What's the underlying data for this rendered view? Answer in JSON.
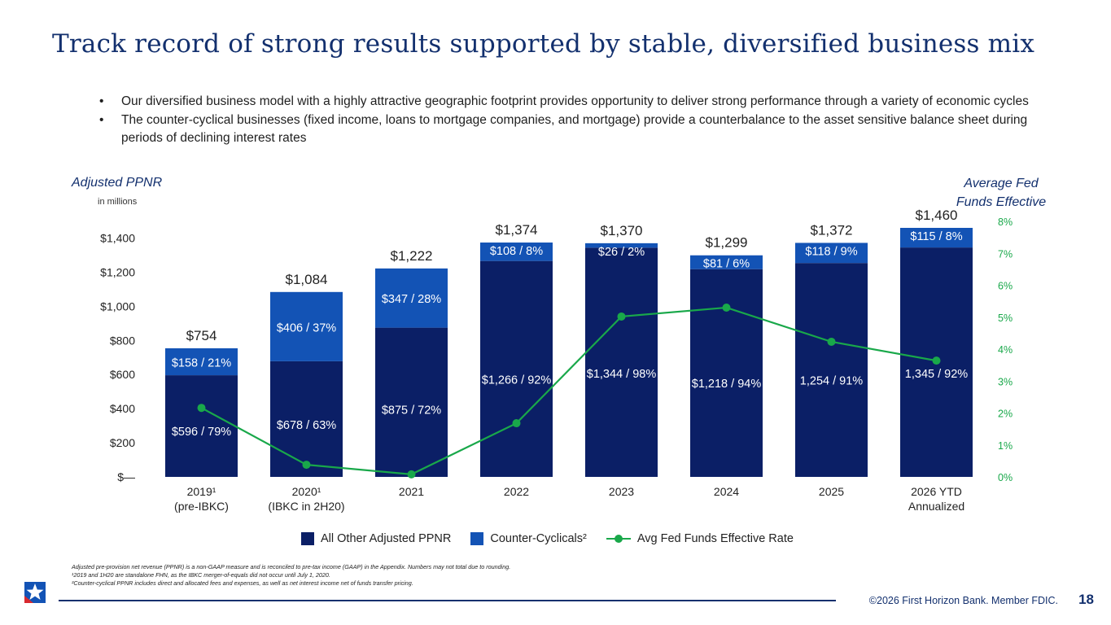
{
  "title": "Track record of strong results supported by stable, diversified business mix",
  "bullets": [
    "Our diversified business model with a highly attractive geographic footprint provides opportunity to deliver strong performance through a variety of economic cycles",
    "The counter-cyclical businesses (fixed income, loans to mortgage companies, and mortgage) provide a counterbalance to the asset sensitive balance sheet during periods of declining interest rates"
  ],
  "bullet_glyph": "•",
  "left_axis_title": "Adjusted PPNR",
  "left_axis_units": "in millions",
  "right_axis_title_lines": [
    "Average Fed",
    "Funds Effective"
  ],
  "legend": {
    "all_other": "All Other Adjusted PPNR",
    "counter": "Counter-Cyclicals²",
    "fed": "Avg Fed Funds Effective Rate"
  },
  "footnotes": [
    "Adjusted pre-provision net revenue (PPNR) is a non-GAAP measure and is reconciled to pre-tax income (GAAP) in the Appendix. Numbers may not total due to rounding.",
    "¹2019 and 1H20 are standalone FHN, as the IBKC merger-of-equals did not occur until July 1, 2020.",
    "²Counter-cyclical PPNR includes direct and allocated fees and expenses, as well as net interest income net of funds transfer pricing."
  ],
  "copyright": "©2026 First Horizon Bank. Member FDIC.",
  "page_number": "18",
  "colors": {
    "title": "#13306e",
    "all_other": "#0b1f66",
    "counter": "#1353b5",
    "fed_line": "#19a84a",
    "rule": "#13306e"
  },
  "chart_data": {
    "type": "bar",
    "stacked": true,
    "categories": [
      [
        "2019¹",
        "(pre-IBKC)"
      ],
      [
        "2020¹",
        "(IBKC in 2H20)"
      ],
      [
        "2021"
      ],
      [
        "2022"
      ],
      [
        "2023"
      ],
      [
        "2024"
      ],
      [
        "2025"
      ],
      [
        "2026 YTD",
        "Annualized"
      ]
    ],
    "ylim": [
      0,
      1460
    ],
    "yticks": [
      0,
      200,
      400,
      600,
      800,
      1000,
      1200,
      1400
    ],
    "ytick_labels": [
      "$—",
      "$200",
      "$400",
      "$600",
      "$800",
      "$1,000",
      "$1,200",
      "$1,400"
    ],
    "y2lim": [
      0,
      8
    ],
    "y2ticks": [
      0,
      1,
      2,
      3,
      4,
      5,
      6,
      7,
      8
    ],
    "y2tick_labels": [
      "0%",
      "1%",
      "2%",
      "3%",
      "4%",
      "5%",
      "6%",
      "7%",
      "8%"
    ],
    "totals": [
      754,
      1084,
      1222,
      1374,
      1370,
      1299,
      1372,
      1460
    ],
    "total_labels": [
      "$754",
      "$1,084",
      "$1,222",
      "$1,374",
      "$1,370",
      "$1,299",
      "$1,372",
      "$1,460"
    ],
    "series": [
      {
        "name": "All Other Adjusted PPNR",
        "values": [
          596,
          678,
          875,
          1266,
          1344,
          1218,
          1254,
          1345
        ],
        "labels": [
          "$596 / 79%",
          "$678 / 63%",
          "$875 / 72%",
          "$1,266 / 92%",
          "$1,344 / 98%",
          "$1,218 / 94%",
          "1,254 / 91%",
          "1,345 / 92%"
        ]
      },
      {
        "name": "Counter-Cyclicals²",
        "values": [
          158,
          406,
          347,
          108,
          26,
          81,
          118,
          115
        ],
        "labels": [
          "$158 / 21%",
          "$406 / 37%",
          "$347 / 28%",
          "$108 / 8%",
          "$26 / 2%",
          "$81 / 6%",
          "$118 / 9%",
          "$115 / 8%"
        ]
      },
      {
        "name": "Avg Fed Funds Effective Rate",
        "axis": "right",
        "values": [
          2.16,
          0.38,
          0.08,
          1.68,
          5.02,
          5.3,
          4.23,
          3.64
        ]
      }
    ]
  }
}
